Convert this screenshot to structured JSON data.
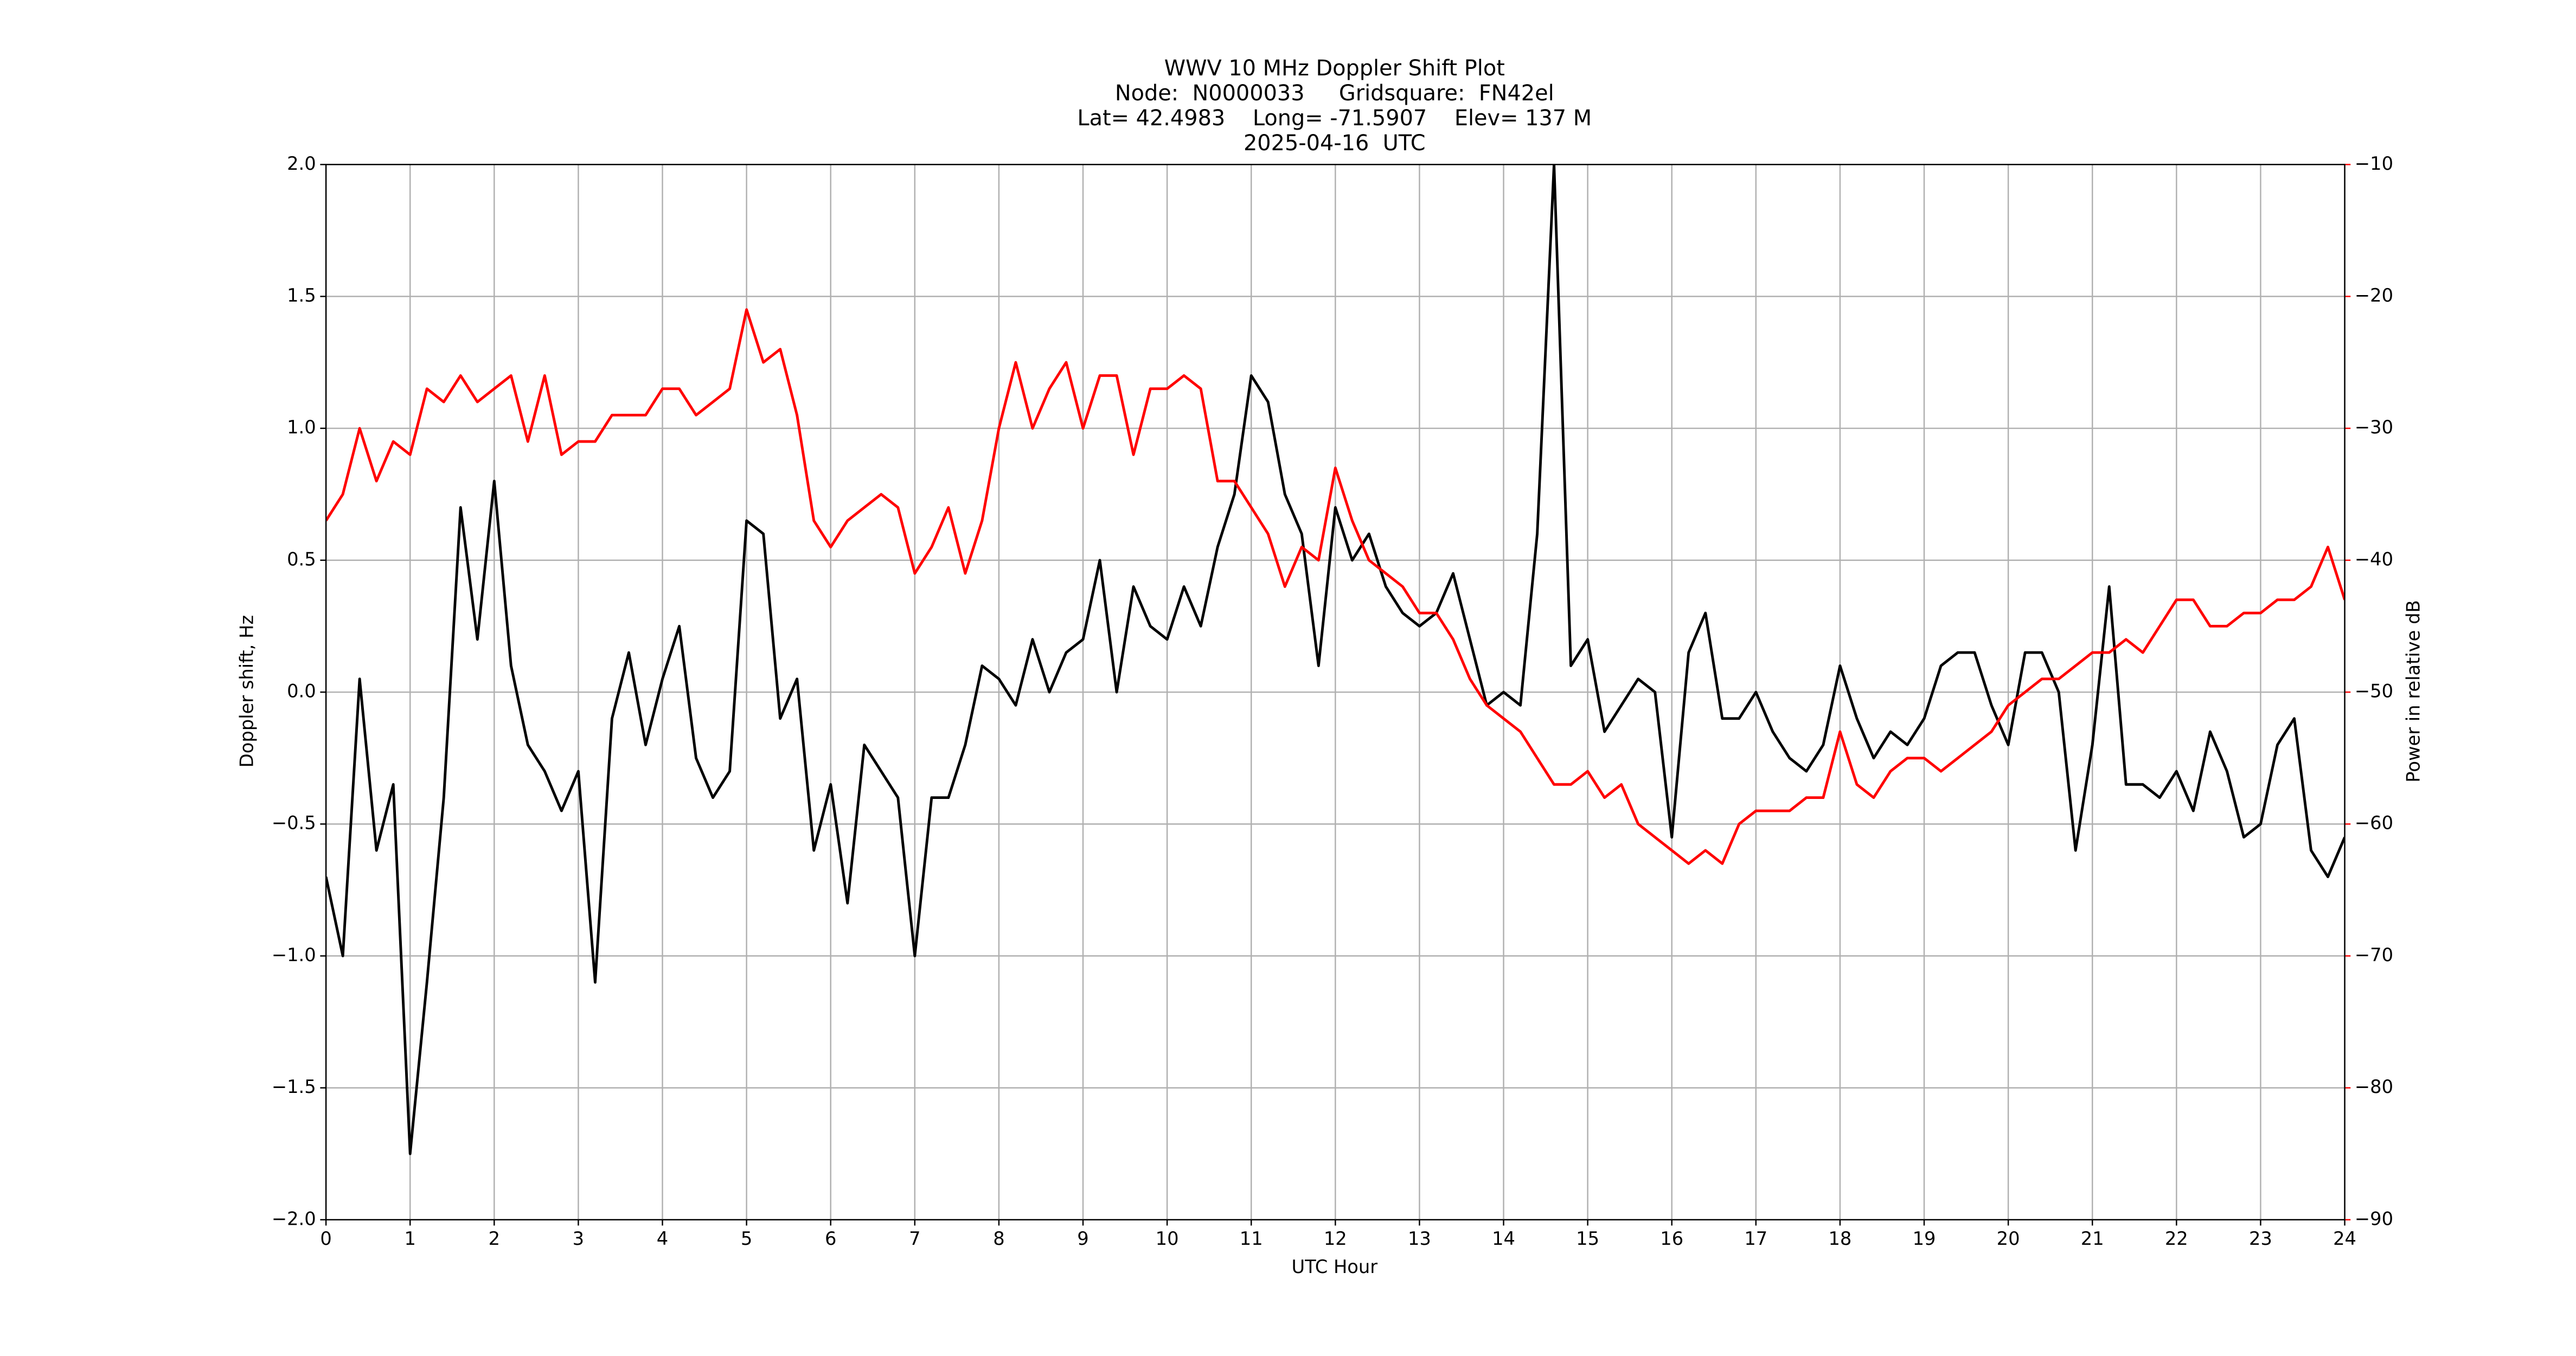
{
  "chart_data": {
    "type": "line",
    "title": [
      "WWV 10 MHz Doppler Shift Plot",
      "Node:  N0000033     Gridsquare:  FN42el",
      "Lat= 42.4983    Long= -71.5907    Elev= 137 M",
      "2025-04-16  UTC"
    ],
    "x_label": "UTC Hour",
    "y_label": "Doppler shift, Hz",
    "y2_label": "Power in relative dB",
    "xlim": [
      0,
      24
    ],
    "xticks": [
      0,
      1,
      2,
      3,
      4,
      5,
      6,
      7,
      8,
      9,
      10,
      11,
      12,
      13,
      14,
      15,
      16,
      17,
      18,
      19,
      20,
      21,
      22,
      23,
      24
    ],
    "ylim": [
      -2,
      2
    ],
    "yticks": [
      {
        "value": -2,
        "label": "−2.0"
      },
      {
        "value": -1.5,
        "label": "−1.5"
      },
      {
        "value": -1,
        "label": "−1.0"
      },
      {
        "value": -0.5,
        "label": "−0.5"
      },
      {
        "value": 0,
        "label": "0.0"
      },
      0.5,
      {
        "value": 1,
        "label": "1.0"
      },
      1.5,
      {
        "value": 2,
        "label": "2.0"
      }
    ],
    "y2lim": [
      -90,
      -10
    ],
    "y2ticks": [
      {
        "value": -90,
        "label": "−90"
      },
      {
        "value": -80,
        "label": "−80"
      },
      {
        "value": -70,
        "label": "−70"
      },
      {
        "value": -60,
        "label": "−60"
      },
      {
        "value": -50,
        "label": "−50"
      },
      {
        "value": -40,
        "label": "−40"
      },
      {
        "value": -30,
        "label": "−30"
      },
      {
        "value": -20,
        "label": "−20"
      },
      {
        "value": -10,
        "label": "−10"
      }
    ],
    "y2color": "#ff0000",
    "grid": true,
    "x": [
      0,
      0.2,
      0.4,
      0.6,
      0.8,
      1,
      1.2,
      1.4,
      1.6,
      1.8,
      2,
      2.2,
      2.4,
      2.6,
      2.8,
      3,
      3.2,
      3.4,
      3.6,
      3.8,
      4,
      4.2,
      4.4,
      4.6,
      4.8,
      5,
      5.2,
      5.4,
      5.6,
      5.8,
      6,
      6.2,
      6.4,
      6.6,
      6.8,
      7,
      7.2,
      7.4,
      7.6,
      7.8,
      8,
      8.2,
      8.4,
      8.6,
      8.8,
      9,
      9.2,
      9.4,
      9.6,
      9.8,
      10,
      10.2,
      10.4,
      10.6,
      10.8,
      11,
      11.2,
      11.4,
      11.6,
      11.8,
      12,
      12.2,
      12.4,
      12.6,
      12.8,
      13,
      13.2,
      13.4,
      13.6,
      13.8,
      14,
      14.2,
      14.4,
      14.6,
      14.8,
      15,
      15.2,
      15.4,
      15.6,
      15.8,
      16,
      16.2,
      16.4,
      16.6,
      16.8,
      17,
      17.2,
      17.4,
      17.6,
      17.8,
      18,
      18.2,
      18.4,
      18.6,
      18.8,
      19,
      19.2,
      19.4,
      19.6,
      19.8,
      20,
      20.2,
      20.4,
      20.6,
      20.8,
      21,
      21.2,
      21.4,
      21.6,
      21.8,
      22,
      22.2,
      22.4,
      22.6,
      22.8,
      23,
      23.2,
      23.4,
      23.6,
      23.8,
      24
    ],
    "series": [
      {
        "color": "#000000",
        "values": [
          -0.7,
          -1.0,
          0.05,
          -0.6,
          -0.35,
          -1.75,
          -1.1,
          -0.4,
          0.7,
          0.2,
          0.8,
          0.1,
          -0.2,
          -0.3,
          -0.45,
          -0.3,
          -1.1,
          -0.1,
          0.15,
          -0.2,
          0.05,
          0.25,
          -0.25,
          -0.4,
          -0.3,
          0.65,
          0.6,
          -0.1,
          0.05,
          -0.6,
          -0.35,
          -0.8,
          -0.2,
          -0.3,
          -0.4,
          -1.0,
          -0.4,
          -0.4,
          -0.2,
          0.1,
          0.05,
          -0.05,
          0.2,
          0.0,
          0.15,
          0.2,
          0.5,
          0.0,
          0.4,
          0.25,
          0.2,
          0.4,
          0.25,
          0.55,
          0.75,
          1.2,
          1.1,
          0.75,
          0.6,
          0.1,
          0.7,
          0.5,
          0.6,
          0.4,
          0.3,
          0.25,
          0.3,
          0.45,
          0.2,
          -0.05,
          0.0,
          -0.05,
          0.6,
          2.0,
          0.1,
          0.2,
          -0.15,
          -0.05,
          0.05,
          0.0,
          -0.55,
          0.15,
          0.3,
          -0.1,
          -0.1,
          0.0,
          -0.15,
          -0.25,
          -0.3,
          -0.2,
          0.1,
          -0.1,
          -0.25,
          -0.15,
          -0.2,
          -0.1,
          0.1,
          0.15,
          0.15,
          -0.05,
          -0.2,
          0.15,
          0.15,
          0.0,
          -0.6,
          -0.2,
          0.4,
          -0.35,
          -0.35,
          -0.4,
          -0.3,
          -0.45,
          -0.15,
          -0.3,
          -0.55,
          -0.5,
          -0.2,
          -0.1,
          -0.6,
          -0.7,
          -0.55
        ]
      },
      {
        "color": "#ff0000",
        "axis": "y2",
        "values": [
          -37,
          -35,
          -30,
          -34,
          -31,
          -32,
          -27,
          -28,
          -26,
          -28,
          -27,
          -26,
          -31,
          -26,
          -32,
          -31,
          -31,
          -29,
          -29,
          -29,
          -27,
          -27,
          -29,
          -28,
          -27,
          -21,
          -25,
          -24,
          -29,
          -37,
          -39,
          -37,
          -36,
          -35,
          -36,
          -41,
          -39,
          -36,
          -41,
          -37,
          -30,
          -25,
          -30,
          -27,
          -25,
          -30,
          -26,
          -26,
          -32,
          -27,
          -27,
          -26,
          -27,
          -34,
          -34,
          -36,
          -38,
          -42,
          -39,
          -40,
          -33,
          -37,
          -40,
          -41,
          -42,
          -44,
          -44,
          -46,
          -49,
          -51,
          -52,
          -53,
          -55,
          -57,
          -57,
          -56,
          -58,
          -57,
          -60,
          -61,
          -62,
          -63,
          -62,
          -63,
          -60,
          -59,
          -59,
          -59,
          -58,
          -58,
          -53,
          -57,
          -58,
          -56,
          -55,
          -55,
          -56,
          -55,
          -54,
          -53,
          -51,
          -50,
          -49,
          -49,
          -48,
          -47,
          -47,
          -46,
          -47,
          -45,
          -43,
          -43,
          -45,
          -45,
          -44,
          -44,
          -43,
          -43,
          -42,
          -39,
          -43
        ]
      }
    ]
  }
}
